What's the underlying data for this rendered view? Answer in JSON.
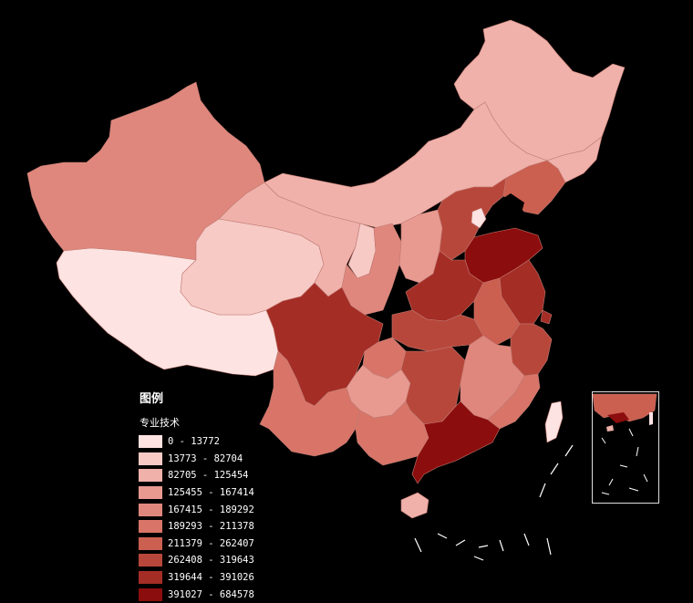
{
  "legend": {
    "title": "图例",
    "subtitle": "专业技术",
    "classes": [
      {
        "range": "0 - 13772",
        "color": "#fde3e1"
      },
      {
        "range": "13773 - 82704",
        "color": "#f7cac6"
      },
      {
        "range": "82705 - 125454",
        "color": "#efb1aa"
      },
      {
        "range": "125455 - 167414",
        "color": "#e89a91"
      },
      {
        "range": "167415 - 189292",
        "color": "#e0877d"
      },
      {
        "range": "189293 - 211378",
        "color": "#d87568"
      },
      {
        "range": "211379 - 262407",
        "color": "#cb5f50"
      },
      {
        "range": "262408 - 319643",
        "color": "#b8473b"
      },
      {
        "range": "319644 - 391026",
        "color": "#a42d26"
      },
      {
        "range": "391027 - 684578",
        "color": "#8c0d0d"
      }
    ]
  },
  "map": {
    "background": "#000000",
    "border_color": "#c9847c",
    "inset_label": "south-china-sea-inset"
  }
}
